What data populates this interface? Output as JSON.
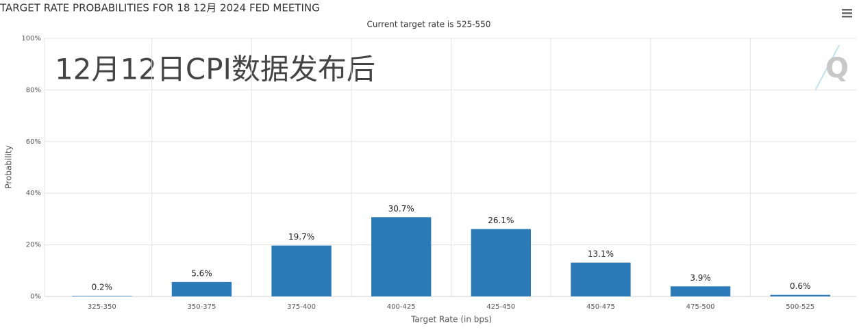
{
  "chart_data": {
    "type": "bar",
    "title": "TARGET RATE PROBABILITIES FOR 18 12月 2024 FED MEETING",
    "subtitle": "Current target rate is 525-550",
    "annotation": "12月12日CPI数据发布后",
    "watermark": "Q",
    "y_label": "Probability",
    "x_label": "Target Rate (in bps)",
    "categories": [
      "325-350",
      "350-375",
      "375-400",
      "400-425",
      "425-450",
      "450-475",
      "475-500",
      "500-525"
    ],
    "values": [
      0.2,
      5.6,
      19.7,
      30.7,
      26.1,
      13.1,
      3.9,
      0.6
    ],
    "value_labels": [
      "0.2%",
      "5.6%",
      "19.7%",
      "30.7%",
      "26.1%",
      "13.1%",
      "3.9%",
      "0.6%"
    ],
    "color": "#2b7bb9",
    "ylim": [
      0,
      100
    ],
    "yticks": [
      {
        "value": 0,
        "label": "0%"
      },
      {
        "value": 20,
        "label": "20%"
      },
      {
        "value": 40,
        "label": "40%"
      },
      {
        "value": 60,
        "label": "60%"
      },
      {
        "value": 80,
        "label": "80%"
      },
      {
        "value": 100,
        "label": "100%"
      }
    ],
    "grid": true
  }
}
